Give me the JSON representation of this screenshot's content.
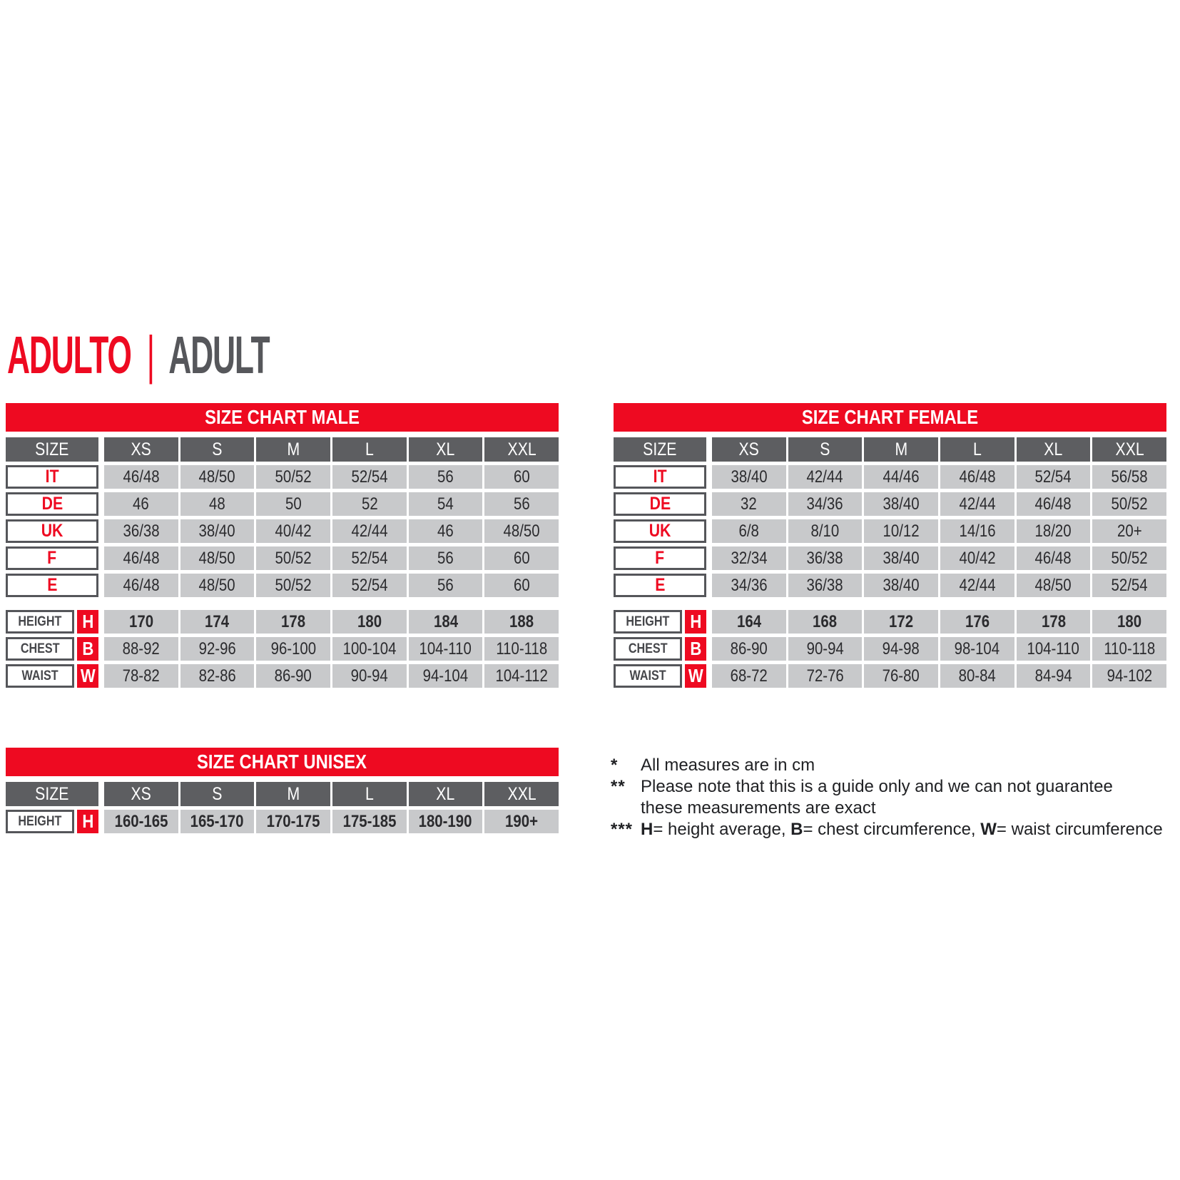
{
  "title": {
    "primary": "ADULTO",
    "separator": "|",
    "secondary": "ADULT"
  },
  "size_header_label": "SIZE",
  "columns": [
    "XS",
    "S",
    "M",
    "L",
    "XL",
    "XXL"
  ],
  "tables": [
    {
      "id": "male",
      "title": "SIZE CHART MALE",
      "size_rows": [
        {
          "label": "IT",
          "values": [
            "46/48",
            "48/50",
            "50/52",
            "52/54",
            "56",
            "60"
          ]
        },
        {
          "label": "DE",
          "values": [
            "46",
            "48",
            "50",
            "52",
            "54",
            "56"
          ]
        },
        {
          "label": "UK",
          "values": [
            "36/38",
            "38/40",
            "40/42",
            "42/44",
            "46",
            "48/50"
          ]
        },
        {
          "label": "F",
          "values": [
            "46/48",
            "48/50",
            "50/52",
            "52/54",
            "56",
            "60"
          ]
        },
        {
          "label": "E",
          "values": [
            "46/48",
            "48/50",
            "50/52",
            "52/54",
            "56",
            "60"
          ]
        }
      ],
      "measure_rows": [
        {
          "label": "HEIGHT",
          "letter": "H",
          "bold": true,
          "values": [
            "170",
            "174",
            "178",
            "180",
            "184",
            "188"
          ]
        },
        {
          "label": "CHEST",
          "letter": "B",
          "bold": false,
          "values": [
            "88-92",
            "92-96",
            "96-100",
            "100-104",
            "104-110",
            "110-118"
          ]
        },
        {
          "label": "WAIST",
          "letter": "W",
          "bold": false,
          "values": [
            "78-82",
            "82-86",
            "86-90",
            "90-94",
            "94-104",
            "104-112"
          ]
        }
      ]
    },
    {
      "id": "female",
      "title": "SIZE CHART FEMALE",
      "size_rows": [
        {
          "label": "IT",
          "values": [
            "38/40",
            "42/44",
            "44/46",
            "46/48",
            "52/54",
            "56/58"
          ]
        },
        {
          "label": "DE",
          "values": [
            "32",
            "34/36",
            "38/40",
            "42/44",
            "46/48",
            "50/52"
          ]
        },
        {
          "label": "UK",
          "values": [
            "6/8",
            "8/10",
            "10/12",
            "14/16",
            "18/20",
            "20+"
          ]
        },
        {
          "label": "F",
          "values": [
            "32/34",
            "36/38",
            "38/40",
            "40/42",
            "46/48",
            "50/52"
          ]
        },
        {
          "label": "E",
          "values": [
            "34/36",
            "36/38",
            "38/40",
            "42/44",
            "48/50",
            "52/54"
          ]
        }
      ],
      "measure_rows": [
        {
          "label": "HEIGHT",
          "letter": "H",
          "bold": true,
          "values": [
            "164",
            "168",
            "172",
            "176",
            "178",
            "180"
          ]
        },
        {
          "label": "CHEST",
          "letter": "B",
          "bold": false,
          "values": [
            "86-90",
            "90-94",
            "94-98",
            "98-104",
            "104-110",
            "110-118"
          ]
        },
        {
          "label": "WAIST",
          "letter": "W",
          "bold": false,
          "values": [
            "68-72",
            "72-76",
            "76-80",
            "80-84",
            "84-94",
            "94-102"
          ]
        }
      ]
    },
    {
      "id": "unisex",
      "title": "SIZE CHART UNISEX",
      "size_rows": [],
      "measure_rows": [
        {
          "label": "HEIGHT",
          "letter": "H",
          "bold": true,
          "values": [
            "160-165",
            "165-170",
            "170-175",
            "175-185",
            "180-190",
            "190+"
          ]
        }
      ]
    }
  ],
  "footnotes": [
    {
      "marker": "*",
      "parts": [
        {
          "t": "All measures are in cm",
          "b": false
        }
      ]
    },
    {
      "marker": "**",
      "parts": [
        {
          "t": "Please note that this is a guide only and we can not guarantee\nthese measurements are exact",
          "b": false
        }
      ]
    },
    {
      "marker": "***",
      "parts": [
        {
          "t": "H",
          "b": true
        },
        {
          "t": "= height average, ",
          "b": false
        },
        {
          "t": "B",
          "b": true
        },
        {
          "t": "= chest circumference, ",
          "b": false
        },
        {
          "t": "W",
          "b": true
        },
        {
          "t": "= waist circumference",
          "b": false
        }
      ]
    }
  ],
  "colors": {
    "red": "#ee0a21",
    "header_gray": "#5d5e61",
    "cell_gray": "#c8c9cb",
    "text_dark": "#2b2b2e",
    "title_gray": "#56575b",
    "border_gray": "#55565a"
  }
}
